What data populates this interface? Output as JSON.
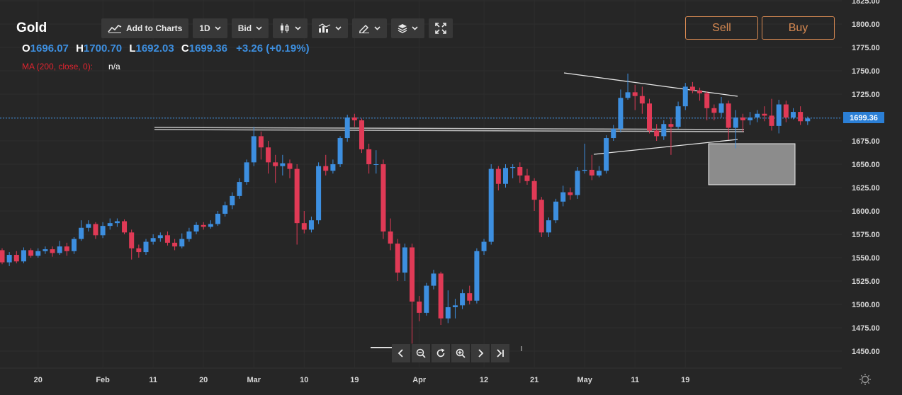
{
  "instrument": {
    "title": "Gold"
  },
  "ohlc": {
    "o_label": "O",
    "o_value": "1696.07",
    "h_label": "H",
    "h_value": "1700.70",
    "l_label": "L",
    "l_value": "1692.03",
    "c_label": "C",
    "c_value": "1699.36",
    "change": "+3.26 (+0.19%)"
  },
  "indicator": {
    "label": "MA (200, close, 0):",
    "value": "n/a"
  },
  "toolbar": {
    "add_to_charts_label": "Add to Charts",
    "add_to_charts_icon": "chart-line-icon",
    "timeframe_label": "1D",
    "price_type_label": "Bid",
    "chart_type_icon": "candlestick-icon",
    "indicators_icon": "indicators-icon",
    "drawing_icon": "pencil-icon",
    "layers_icon": "layers-icon",
    "fullscreen_icon": "fullscreen-icon"
  },
  "trade": {
    "sell_label": "Sell",
    "buy_label": "Buy",
    "accent_color": "#d88a52"
  },
  "navigation": {
    "icons": [
      "chevron-left-icon",
      "zoom-out-icon",
      "reset-icon",
      "zoom-in-icon",
      "chevron-right-icon",
      "skip-to-end-icon"
    ]
  },
  "chart_data": {
    "type": "candlestick",
    "interval": "1D",
    "up_color": "#3d8fe0",
    "down_color": "#e03a56",
    "background": "#262626",
    "grid": true,
    "ylim": [
      1437.5,
      1825
    ],
    "y_ticks": [
      "1825.00",
      "1800.00",
      "1775.00",
      "1750.00",
      "1725.00",
      "1700.00",
      "1675.00",
      "1650.00",
      "1625.00",
      "1600.00",
      "1575.00",
      "1550.00",
      "1525.00",
      "1500.00",
      "1475.00",
      "1450.00"
    ],
    "x_ticks": [
      {
        "label": "20",
        "i": 5
      },
      {
        "label": "Feb",
        "i": 14
      },
      {
        "label": "11",
        "i": 21
      },
      {
        "label": "20",
        "i": 28
      },
      {
        "label": "Mar",
        "i": 35
      },
      {
        "label": "10",
        "i": 42
      },
      {
        "label": "19",
        "i": 49
      },
      {
        "label": "Apr",
        "i": 58
      },
      {
        "label": "12",
        "i": 67
      },
      {
        "label": "21",
        "i": 74
      },
      {
        "label": "May",
        "i": 81
      },
      {
        "label": "11",
        "i": 88
      },
      {
        "label": "19",
        "i": 95
      }
    ],
    "current_price": "1699.36",
    "candles": [
      [
        1558,
        1545,
        1560,
        1543
      ],
      [
        1545,
        1553,
        1556,
        1541
      ],
      [
        1553,
        1546,
        1557,
        1544
      ],
      [
        1546,
        1558,
        1561,
        1544
      ],
      [
        1558,
        1552,
        1560,
        1550
      ],
      [
        1552,
        1557,
        1560,
        1550
      ],
      [
        1557,
        1559,
        1562,
        1554
      ],
      [
        1559,
        1555,
        1562,
        1551
      ],
      [
        1555,
        1562,
        1568,
        1553
      ],
      [
        1562,
        1557,
        1566,
        1552
      ],
      [
        1557,
        1570,
        1572,
        1554
      ],
      [
        1570,
        1582,
        1590,
        1568
      ],
      [
        1582,
        1586,
        1590,
        1578
      ],
      [
        1586,
        1574,
        1588,
        1570
      ],
      [
        1574,
        1584,
        1588,
        1571
      ],
      [
        1584,
        1587,
        1592,
        1580
      ],
      [
        1587,
        1589,
        1592,
        1583
      ],
      [
        1589,
        1577,
        1591,
        1575
      ],
      [
        1577,
        1560,
        1580,
        1548
      ],
      [
        1560,
        1556,
        1564,
        1550
      ],
      [
        1556,
        1567,
        1570,
        1553
      ],
      [
        1567,
        1571,
        1575,
        1564
      ],
      [
        1571,
        1574,
        1577,
        1567
      ],
      [
        1574,
        1566,
        1578,
        1563
      ],
      [
        1566,
        1562,
        1570,
        1558
      ],
      [
        1562,
        1570,
        1576,
        1560
      ],
      [
        1570,
        1578,
        1582,
        1567
      ],
      [
        1578,
        1585,
        1588,
        1575
      ],
      [
        1585,
        1583,
        1588,
        1580
      ],
      [
        1583,
        1586,
        1590,
        1581
      ],
      [
        1586,
        1597,
        1600,
        1584
      ],
      [
        1597,
        1606,
        1610,
        1594
      ],
      [
        1606,
        1616,
        1620,
        1602
      ],
      [
        1616,
        1631,
        1635,
        1613
      ],
      [
        1631,
        1652,
        1655,
        1628
      ],
      [
        1652,
        1680,
        1690,
        1648
      ],
      [
        1680,
        1668,
        1685,
        1655
      ],
      [
        1668,
        1652,
        1675,
        1640
      ],
      [
        1652,
        1648,
        1660,
        1630
      ],
      [
        1648,
        1651,
        1660,
        1638
      ],
      [
        1651,
        1645,
        1655,
        1635
      ],
      [
        1645,
        1587,
        1650,
        1564
      ],
      [
        1587,
        1580,
        1600,
        1576
      ],
      [
        1580,
        1590,
        1594,
        1577
      ],
      [
        1590,
        1648,
        1652,
        1586
      ],
      [
        1648,
        1643,
        1660,
        1638
      ],
      [
        1643,
        1650,
        1655,
        1640
      ],
      [
        1650,
        1678,
        1680,
        1647
      ],
      [
        1678,
        1700,
        1703,
        1674
      ],
      [
        1700,
        1697,
        1704,
        1690
      ],
      [
        1697,
        1666,
        1699,
        1662
      ],
      [
        1666,
        1650,
        1672,
        1640
      ],
      [
        1650,
        1650,
        1665,
        1640
      ],
      [
        1650,
        1578,
        1655,
        1570
      ],
      [
        1578,
        1565,
        1592,
        1558
      ],
      [
        1565,
        1534,
        1570,
        1525
      ],
      [
        1534,
        1561,
        1565,
        1525
      ],
      [
        1561,
        1503,
        1565,
        1458
      ],
      [
        1503,
        1491,
        1509,
        1482
      ],
      [
        1491,
        1520,
        1523,
        1488
      ],
      [
        1520,
        1533,
        1537,
        1516
      ],
      [
        1533,
        1485,
        1535,
        1478
      ],
      [
        1485,
        1497,
        1515,
        1480
      ],
      [
        1497,
        1499,
        1506,
        1485
      ],
      [
        1499,
        1512,
        1516,
        1495
      ],
      [
        1512,
        1504,
        1520,
        1500
      ],
      [
        1504,
        1557,
        1560,
        1501
      ],
      [
        1557,
        1567,
        1570,
        1553
      ],
      [
        1567,
        1645,
        1650,
        1564
      ],
      [
        1645,
        1629,
        1648,
        1622
      ],
      [
        1629,
        1646,
        1650,
        1625
      ],
      [
        1646,
        1647,
        1650,
        1635
      ],
      [
        1647,
        1638,
        1652,
        1630
      ],
      [
        1638,
        1632,
        1645,
        1628
      ],
      [
        1632,
        1612,
        1635,
        1600
      ],
      [
        1612,
        1577,
        1615,
        1572
      ],
      [
        1577,
        1590,
        1593,
        1572
      ],
      [
        1590,
        1610,
        1613,
        1587
      ],
      [
        1610,
        1620,
        1627,
        1605
      ],
      [
        1620,
        1617,
        1625,
        1612
      ],
      [
        1617,
        1643,
        1647,
        1613
      ],
      [
        1643,
        1644,
        1672,
        1640
      ],
      [
        1644,
        1638,
        1660,
        1633
      ],
      [
        1638,
        1643,
        1648,
        1636
      ],
      [
        1643,
        1678,
        1681,
        1640
      ],
      [
        1678,
        1688,
        1692,
        1675
      ],
      [
        1688,
        1721,
        1730,
        1684
      ],
      [
        1721,
        1727,
        1747,
        1719
      ],
      [
        1727,
        1723,
        1735,
        1708
      ],
      [
        1723,
        1715,
        1733,
        1704
      ],
      [
        1715,
        1686,
        1720,
        1683
      ],
      [
        1686,
        1680,
        1693,
        1675
      ],
      [
        1680,
        1693,
        1697,
        1676
      ],
      [
        1693,
        1690,
        1700,
        1660
      ],
      [
        1690,
        1712,
        1717,
        1688
      ],
      [
        1712,
        1733,
        1737,
        1708
      ],
      [
        1733,
        1729,
        1738,
        1726
      ],
      [
        1729,
        1726,
        1732,
        1718
      ],
      [
        1726,
        1710,
        1728,
        1697
      ],
      [
        1710,
        1705,
        1714,
        1697
      ],
      [
        1705,
        1715,
        1722,
        1700
      ],
      [
        1715,
        1689,
        1718,
        1676
      ],
      [
        1689,
        1700,
        1708,
        1667
      ],
      [
        1700,
        1697,
        1704,
        1685
      ],
      [
        1697,
        1700,
        1706,
        1692
      ],
      [
        1700,
        1704,
        1708,
        1695
      ],
      [
        1704,
        1702,
        1712,
        1696
      ],
      [
        1702,
        1691,
        1720,
        1686
      ],
      [
        1691,
        1714,
        1719,
        1683
      ],
      [
        1714,
        1700,
        1718,
        1695
      ],
      [
        1700,
        1706,
        1710,
        1698
      ],
      [
        1706,
        1696,
        1712,
        1692
      ],
      [
        1696,
        1699,
        1701,
        1692
      ]
    ]
  }
}
